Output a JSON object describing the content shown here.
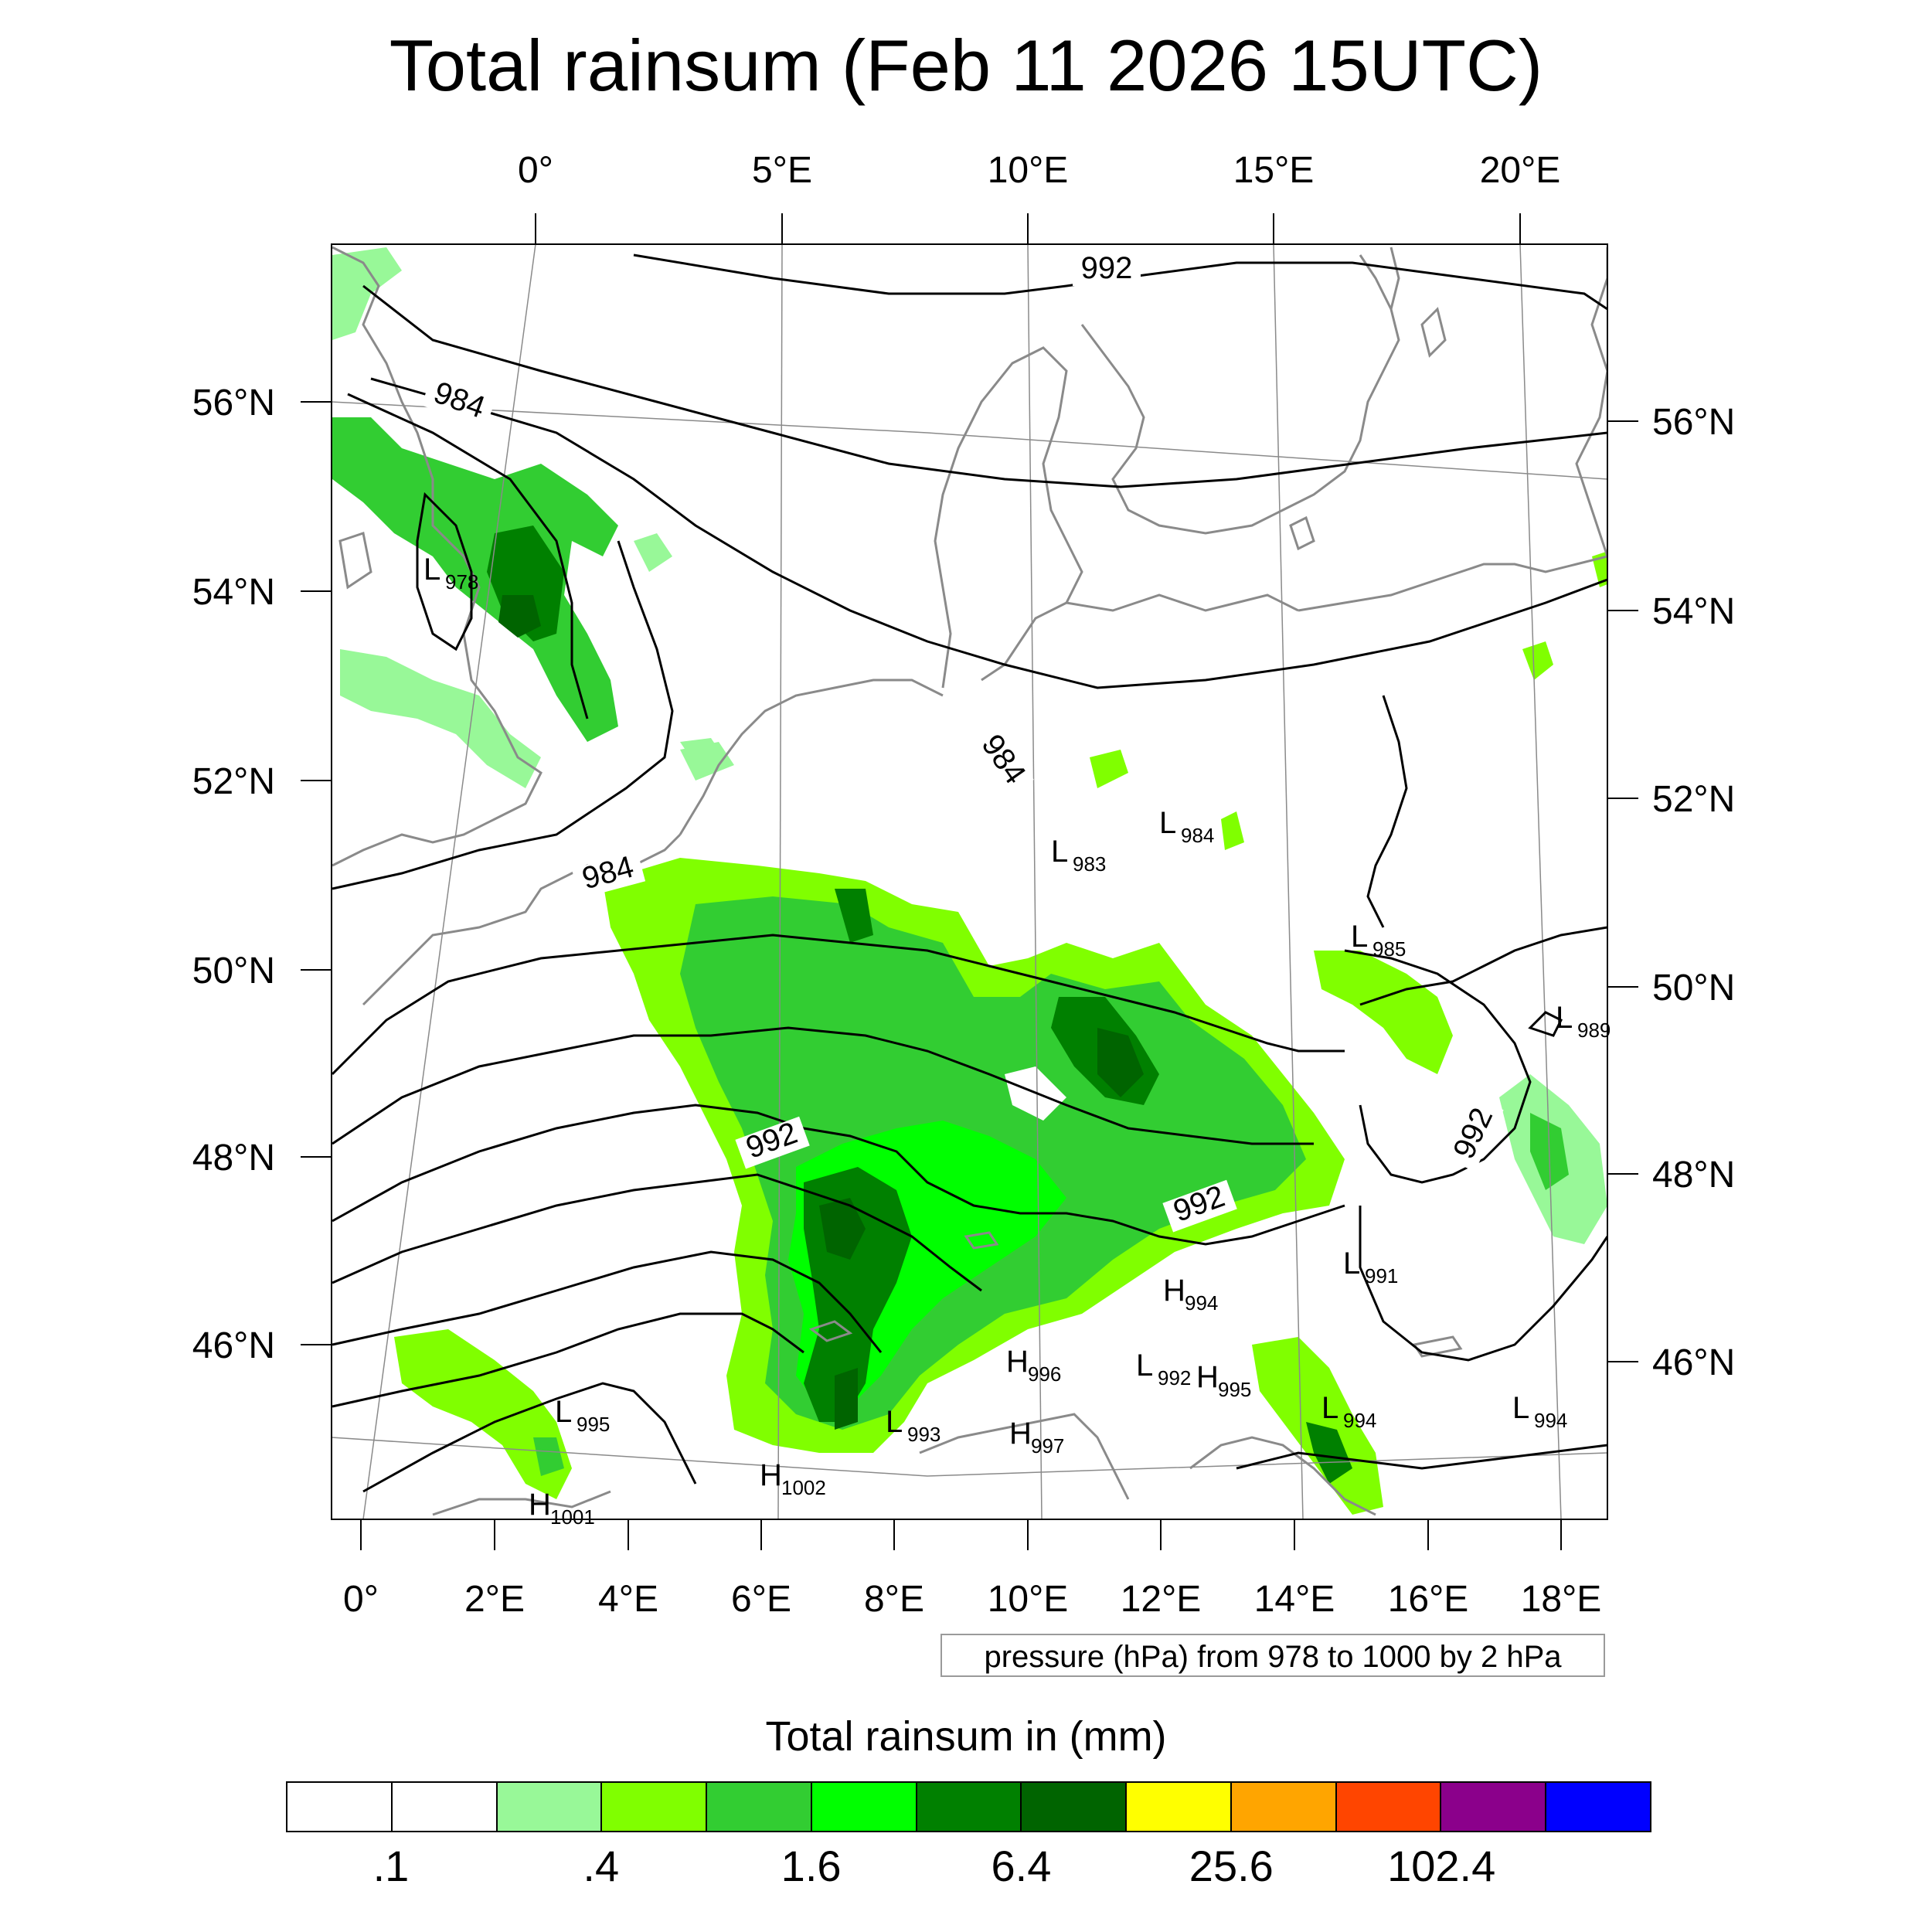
{
  "title": "Total rainsum (Feb 11 2026 15UTC)",
  "top_axis_labels": [
    "0°",
    "5°E",
    "10°E",
    "15°E",
    "20°E"
  ],
  "bottom_axis_labels": [
    "0°",
    "2°E",
    "4°E",
    "6°E",
    "8°E",
    "10°E",
    "12°E",
    "14°E",
    "16°E",
    "18°E"
  ],
  "left_axis_labels": [
    "56°N",
    "54°N",
    "52°N",
    "50°N",
    "48°N",
    "46°N"
  ],
  "right_axis_labels": [
    "56°N",
    "54°N",
    "52°N",
    "50°N",
    "48°N",
    "46°N"
  ],
  "contour_labels": [
    "992",
    "984",
    "984",
    "984",
    "992",
    "992",
    "992"
  ],
  "pressure_centers": [
    {
      "kind": "L",
      "value": "978"
    },
    {
      "kind": "L",
      "value": "983"
    },
    {
      "kind": "L",
      "value": "984"
    },
    {
      "kind": "L",
      "value": "985"
    },
    {
      "kind": "L",
      "value": "989"
    },
    {
      "kind": "L",
      "value": "991"
    },
    {
      "kind": "H",
      "value": "994"
    },
    {
      "kind": "H",
      "value": "996"
    },
    {
      "kind": "L",
      "value": "992"
    },
    {
      "kind": "H",
      "value": "995"
    },
    {
      "kind": "L",
      "value": "994"
    },
    {
      "kind": "L",
      "value": "994"
    },
    {
      "kind": "L",
      "value": "995"
    },
    {
      "kind": "L",
      "value": "993"
    },
    {
      "kind": "H",
      "value": "997"
    },
    {
      "kind": "H",
      "value": "1002"
    },
    {
      "kind": "H",
      "value": "1001"
    }
  ],
  "pressure_note": "pressure (hPa) from 978 to 1000 by 2 hPa",
  "colorbar": {
    "title": "Total rainsum in (mm)",
    "colors": [
      "#ffffff",
      "#ffffff",
      "#98f898",
      "#80ff00",
      "#32cd32",
      "#00ff00",
      "#008000",
      "#006400",
      "#ffff00",
      "#ffa500",
      "#ff4500",
      "#8b008b",
      "#0000ff"
    ],
    "labels": [
      ".1",
      ".4",
      "1.6",
      "6.4",
      "25.6",
      "102.4"
    ]
  }
}
